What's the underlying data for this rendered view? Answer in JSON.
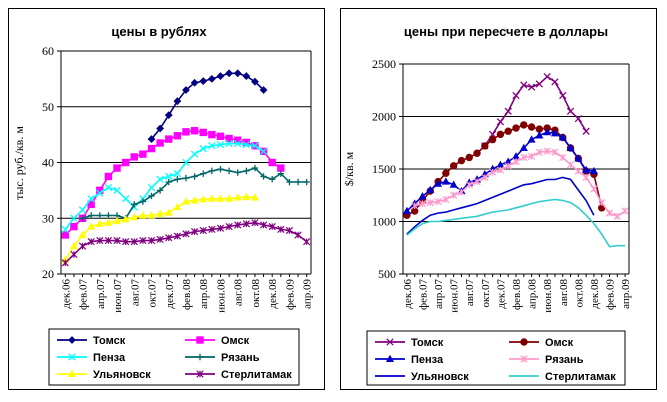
{
  "chart_data": [
    {
      "type": "line",
      "title": "цены в рублях",
      "ylabel": "тыс. руб./кв. м",
      "ylim": [
        20,
        60
      ],
      "yticks": [
        20,
        30,
        40,
        50,
        60
      ],
      "grid": "horizontal",
      "legend_position": "bottom",
      "x": [
        "дек.06",
        "янв.07",
        "фев.07",
        "мар.07",
        "апр.07",
        "май.07",
        "июн.07",
        "июл.07",
        "авг.07",
        "сен.07",
        "окт.07",
        "ноя.07",
        "дек.07",
        "янв.08",
        "фев.08",
        "мар.08",
        "апр.08",
        "май.08",
        "июн.08",
        "июл.08",
        "авг.08",
        "сен.08",
        "окт.08",
        "ноя.08",
        "дек.08",
        "янв.09",
        "фев.09",
        "мар.09",
        "апр.09"
      ],
      "xticklabels": [
        "дек.06",
        "фев.07",
        "апр.07",
        "июн.07",
        "авг.07",
        "окт.07",
        "дек.07",
        "фев.08",
        "апр.08",
        "июн.08",
        "авг.08",
        "окт.08",
        "дек.08",
        "фев.09",
        "апр.09"
      ],
      "series": [
        {
          "name": "Томск",
          "color": "#000080",
          "marker": "diamond",
          "values": [
            null,
            null,
            null,
            null,
            null,
            null,
            null,
            null,
            null,
            null,
            44.2,
            46.1,
            48.5,
            51,
            53,
            54.3,
            54.6,
            55,
            55.5,
            56,
            56,
            55.5,
            54.5,
            53,
            null,
            null,
            null,
            null,
            null
          ]
        },
        {
          "name": "Омск",
          "color": "#FF00FF",
          "marker": "square",
          "values": [
            27,
            28.5,
            30,
            32.5,
            35,
            37.5,
            39,
            40,
            41,
            41.5,
            42.5,
            43.5,
            44.2,
            44.8,
            45.5,
            45.7,
            45.4,
            45,
            44.7,
            44.3,
            44,
            43.6,
            43,
            42,
            40,
            39,
            null,
            null,
            null
          ]
        },
        {
          "name": "Пенза",
          "color": "#00FFFF",
          "marker": "x",
          "values": [
            28,
            30,
            31.5,
            33.5,
            34.5,
            35.5,
            35,
            33.5,
            32,
            33.5,
            35.5,
            37,
            37.5,
            38,
            40,
            41.5,
            42.5,
            43,
            43.2,
            43.4,
            43.4,
            43.2,
            43,
            42,
            null,
            null,
            null,
            null,
            null
          ]
        },
        {
          "name": "Рязань",
          "color": "#006666",
          "marker": "plus",
          "values": [
            null,
            null,
            30,
            30.5,
            30.5,
            30.5,
            30.5,
            30,
            32.5,
            33,
            34,
            35,
            36.5,
            37,
            37.2,
            37.5,
            38,
            38.5,
            38.8,
            38.5,
            38.2,
            38.5,
            39,
            37.5,
            37,
            38,
            36.5,
            36.5,
            36.5
          ]
        },
        {
          "name": "Ульяновск",
          "color": "#FFFF00",
          "marker": "triangle",
          "values": [
            22.5,
            25,
            27,
            28.5,
            29,
            29.2,
            29.5,
            29.8,
            30.2,
            30.5,
            30.5,
            30.8,
            31,
            32,
            33,
            33.2,
            33.4,
            33.5,
            33.5,
            33.5,
            33.7,
            33.8,
            33.7,
            null,
            null,
            null,
            null,
            null,
            null
          ]
        },
        {
          "name": "Стерлитамак",
          "color": "#800080",
          "marker": "star",
          "values": [
            22,
            23.5,
            25,
            25.8,
            26,
            26,
            26,
            25.8,
            25.8,
            26,
            26,
            26.2,
            26.5,
            26.8,
            27.2,
            27.6,
            27.8,
            28,
            28.2,
            28.5,
            28.8,
            29,
            29.2,
            28.8,
            28.5,
            28,
            27.8,
            27,
            25.8
          ]
        }
      ],
      "legend": [
        "Томск",
        "Омск",
        "Пенза",
        "Рязань",
        "Ульяновск",
        "Стерлитамак"
      ]
    },
    {
      "type": "line",
      "title": "цены при пересчете в доллары",
      "ylabel": "$/кв. м",
      "ylim": [
        500,
        2500
      ],
      "yticks": [
        500,
        1000,
        1500,
        2000,
        2500
      ],
      "grid": "horizontal",
      "legend_position": "bottom",
      "x": [
        "дек.06",
        "янв.07",
        "фев.07",
        "мар.07",
        "апр.07",
        "май.07",
        "июн.07",
        "июл.07",
        "авг.07",
        "сен.07",
        "окт.07",
        "ноя.07",
        "дек.07",
        "янв.08",
        "фев.08",
        "мар.08",
        "апр.08",
        "май.08",
        "июн.08",
        "июл.08",
        "авг.08",
        "сен.08",
        "окт.08",
        "ноя.08",
        "дек.08",
        "янв.09",
        "фев.09",
        "мар.09",
        "апр.09"
      ],
      "xticklabels": [
        "дек.06",
        "фев.07",
        "апр.07",
        "июн.07",
        "авг.07",
        "окт.07",
        "дек.07",
        "фев.08",
        "апр.08",
        "июн.08",
        "авг.08",
        "окт.08",
        "дек.08",
        "фев.09",
        "апр.09"
      ],
      "series": [
        {
          "name": "Томск",
          "color": "#800080",
          "marker": "x",
          "values": [
            null,
            null,
            null,
            null,
            null,
            null,
            null,
            null,
            null,
            null,
            1720,
            1830,
            1950,
            2050,
            2200,
            2300,
            2280,
            2310,
            2380,
            2330,
            2200,
            2050,
            1980,
            1860,
            null,
            null,
            null,
            null,
            null
          ]
        },
        {
          "name": "Омск",
          "color": "#800000",
          "marker": "circle",
          "values": [
            1060,
            1100,
            1200,
            1290,
            1380,
            1460,
            1530,
            1580,
            1610,
            1650,
            1720,
            1780,
            1830,
            1860,
            1890,
            1920,
            1900,
            1880,
            1890,
            1870,
            1800,
            1700,
            1600,
            1480,
            1450,
            1130,
            null,
            null,
            null
          ]
        },
        {
          "name": "Пенза",
          "color": "#0000CC",
          "marker": "triangle",
          "values": [
            1100,
            1170,
            1240,
            1300,
            1360,
            1380,
            1350,
            1290,
            1370,
            1400,
            1450,
            1500,
            1540,
            1570,
            1620,
            1700,
            1780,
            1820,
            1850,
            1840,
            1800,
            1700,
            1600,
            1490,
            1480,
            null,
            null,
            null,
            null
          ]
        },
        {
          "name": "Рязань",
          "color": "#FF99CC",
          "marker": "star",
          "values": [
            null,
            1150,
            1170,
            1180,
            1190,
            1210,
            1250,
            1280,
            1350,
            1380,
            1420,
            1470,
            1490,
            1530,
            1570,
            1610,
            1620,
            1660,
            1670,
            1660,
            1610,
            1540,
            1480,
            1420,
            1310,
            1180,
            1080,
            1050,
            1100
          ]
        },
        {
          "name": "Ульяновск",
          "color": "#0000CC",
          "marker": "none",
          "values": [
            880,
            950,
            1010,
            1060,
            1080,
            1090,
            1110,
            1130,
            1150,
            1170,
            1200,
            1230,
            1260,
            1290,
            1320,
            1350,
            1360,
            1380,
            1400,
            1400,
            1420,
            1400,
            1300,
            1200,
            1060,
            null,
            null,
            null,
            null
          ]
        },
        {
          "name": "Стерлитамак",
          "color": "#33CCCC",
          "marker": "none",
          "values": [
            870,
            930,
            980,
            1000,
            1000,
            1010,
            1020,
            1030,
            1040,
            1050,
            1070,
            1090,
            1100,
            1110,
            1130,
            1150,
            1170,
            1190,
            1200,
            1210,
            1200,
            1180,
            1130,
            1060,
            980,
            880,
            760,
            770,
            770
          ]
        }
      ],
      "legend": [
        "Томск",
        "Омск",
        "Пенза",
        "Рязань",
        "Ульяновск",
        "Стерлитамак"
      ]
    }
  ]
}
